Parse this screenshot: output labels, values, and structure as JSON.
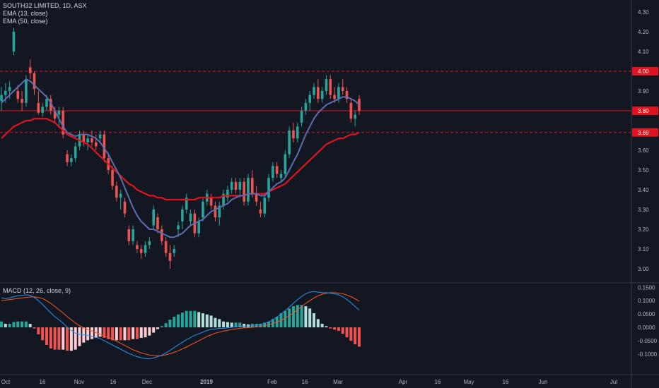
{
  "legend": {
    "symbol": "SOUTH32 LIMITED, 1D, ASX",
    "ema13": "EMA (13, close)",
    "ema50": "EMA (50, close)",
    "macd": "MACD (12, 26, close, 9)"
  },
  "colors": {
    "background": "#131722",
    "up": "#26a69a",
    "down": "#ef5350",
    "ema13": "#5b6eb0",
    "ema50": "#e0141e",
    "macd_line": "#2196f3",
    "signal_line": "#ff5722",
    "hline": "#e0141e"
  },
  "chart_data": [
    {
      "type": "candlestick",
      "ylim": [
        2.95,
        4.35
      ],
      "price_ticks": [
        "4.30",
        "4.20",
        "4.10",
        "4.00",
        "3.90",
        "3.80",
        "3.70",
        "3.60",
        "3.50",
        "3.40",
        "3.30",
        "3.20",
        "3.10",
        "3.00"
      ],
      "time_ticks": [
        "Oct",
        "16",
        "Nov",
        "16",
        "Dec",
        "2019",
        "Feb",
        "16",
        "Mar",
        "Apr",
        "16",
        "May",
        "16",
        "Jun",
        "Jul"
      ],
      "time_ticks_bold": [
        "2019"
      ],
      "horizontal_lines": [
        {
          "value": 4.0,
          "label": "4.00",
          "style": "dashed"
        },
        {
          "value": 3.8,
          "label": "3.80",
          "style": "solid"
        },
        {
          "value": 3.69,
          "label": "3.69",
          "style": "dashed"
        }
      ],
      "ohlc": [
        [
          3.85,
          3.92,
          3.8,
          3.88
        ],
        [
          3.88,
          3.94,
          3.84,
          3.9
        ],
        [
          3.9,
          3.95,
          3.86,
          3.92
        ],
        [
          4.1,
          4.22,
          4.08,
          4.2
        ],
        [
          3.9,
          3.93,
          3.84,
          3.86
        ],
        [
          3.86,
          3.9,
          3.8,
          3.84
        ],
        [
          3.84,
          3.98,
          3.82,
          3.96
        ],
        [
          4.02,
          4.06,
          3.96,
          3.99
        ],
        [
          3.99,
          4.0,
          3.88,
          3.91
        ],
        [
          3.84,
          3.9,
          3.78,
          3.79
        ],
        [
          3.79,
          3.84,
          3.77,
          3.82
        ],
        [
          3.82,
          3.88,
          3.8,
          3.86
        ],
        [
          3.86,
          3.88,
          3.78,
          3.8
        ],
        [
          3.8,
          3.82,
          3.74,
          3.76
        ],
        [
          3.78,
          3.82,
          3.72,
          3.8
        ],
        [
          3.8,
          3.82,
          3.66,
          3.68
        ],
        [
          3.58,
          3.6,
          3.52,
          3.54
        ],
        [
          3.54,
          3.58,
          3.52,
          3.56
        ],
        [
          3.56,
          3.64,
          3.54,
          3.62
        ],
        [
          3.62,
          3.7,
          3.6,
          3.68
        ],
        [
          3.68,
          3.7,
          3.62,
          3.64
        ],
        [
          3.64,
          3.68,
          3.6,
          3.66
        ],
        [
          3.66,
          3.7,
          3.62,
          3.64
        ],
        [
          3.64,
          3.68,
          3.6,
          3.62
        ],
        [
          3.66,
          3.7,
          3.64,
          3.68
        ],
        [
          3.68,
          3.7,
          3.54,
          3.56
        ],
        [
          3.56,
          3.58,
          3.48,
          3.5
        ],
        [
          3.5,
          3.52,
          3.4,
          3.42
        ],
        [
          3.42,
          3.44,
          3.34,
          3.36
        ],
        [
          3.36,
          3.4,
          3.3,
          3.38
        ],
        [
          3.34,
          3.36,
          3.26,
          3.28
        ],
        [
          3.2,
          3.22,
          3.12,
          3.14
        ],
        [
          3.14,
          3.22,
          3.12,
          3.2
        ],
        [
          3.12,
          3.14,
          3.08,
          3.1
        ],
        [
          3.1,
          3.12,
          3.05,
          3.08
        ],
        [
          3.08,
          3.14,
          3.06,
          3.12
        ],
        [
          3.12,
          3.16,
          3.1,
          3.14
        ],
        [
          3.22,
          3.32,
          3.2,
          3.3
        ],
        [
          3.26,
          3.28,
          3.18,
          3.2
        ],
        [
          3.2,
          3.22,
          3.12,
          3.14
        ],
        [
          3.14,
          3.16,
          3.06,
          3.08
        ],
        [
          3.08,
          3.12,
          3.0,
          3.04
        ],
        [
          3.08,
          3.12,
          3.06,
          3.1
        ],
        [
          3.2,
          3.24,
          3.16,
          3.22
        ],
        [
          3.24,
          3.32,
          3.2,
          3.3
        ],
        [
          3.3,
          3.38,
          3.28,
          3.36
        ],
        [
          3.24,
          3.3,
          3.22,
          3.28
        ],
        [
          3.28,
          3.3,
          3.16,
          3.18
        ],
        [
          3.18,
          3.26,
          3.16,
          3.24
        ],
        [
          3.26,
          3.36,
          3.24,
          3.34
        ],
        [
          3.34,
          3.4,
          3.32,
          3.38
        ],
        [
          3.36,
          3.38,
          3.3,
          3.32
        ],
        [
          3.32,
          3.34,
          3.24,
          3.26
        ],
        [
          3.26,
          3.34,
          3.22,
          3.32
        ],
        [
          3.32,
          3.4,
          3.3,
          3.38
        ],
        [
          3.36,
          3.42,
          3.34,
          3.4
        ],
        [
          3.4,
          3.46,
          3.38,
          3.44
        ],
        [
          3.44,
          3.46,
          3.38,
          3.4
        ],
        [
          3.4,
          3.46,
          3.36,
          3.44
        ],
        [
          3.44,
          3.46,
          3.32,
          3.34
        ],
        [
          3.34,
          3.48,
          3.32,
          3.46
        ],
        [
          3.46,
          3.5,
          3.36,
          3.38
        ],
        [
          3.38,
          3.42,
          3.32,
          3.34
        ],
        [
          3.3,
          3.34,
          3.26,
          3.28
        ],
        [
          3.28,
          3.38,
          3.26,
          3.36
        ],
        [
          3.36,
          3.48,
          3.34,
          3.46
        ],
        [
          3.46,
          3.54,
          3.44,
          3.52
        ],
        [
          3.52,
          3.54,
          3.46,
          3.48
        ],
        [
          3.46,
          3.5,
          3.44,
          3.48
        ],
        [
          3.48,
          3.6,
          3.46,
          3.58
        ],
        [
          3.58,
          3.72,
          3.56,
          3.7
        ],
        [
          3.7,
          3.74,
          3.64,
          3.66
        ],
        [
          3.66,
          3.74,
          3.64,
          3.72
        ],
        [
          3.74,
          3.82,
          3.72,
          3.8
        ],
        [
          3.8,
          3.86,
          3.78,
          3.84
        ],
        [
          3.84,
          3.9,
          3.8,
          3.88
        ],
        [
          3.88,
          3.94,
          3.86,
          3.92
        ],
        [
          3.92,
          3.96,
          3.84,
          3.86
        ],
        [
          3.86,
          3.92,
          3.84,
          3.9
        ],
        [
          3.9,
          3.98,
          3.88,
          3.96
        ],
        [
          3.96,
          3.98,
          3.86,
          3.88
        ],
        [
          3.88,
          3.92,
          3.84,
          3.86
        ],
        [
          3.86,
          3.94,
          3.84,
          3.92
        ],
        [
          3.92,
          3.96,
          3.88,
          3.9
        ],
        [
          3.9,
          3.92,
          3.84,
          3.86
        ],
        [
          3.84,
          3.86,
          3.74,
          3.76
        ],
        [
          3.76,
          3.8,
          3.72,
          3.78
        ],
        [
          3.86,
          3.88,
          3.78,
          3.8
        ]
      ],
      "ema13": [
        3.84,
        3.86,
        3.88,
        3.9,
        3.92,
        3.94,
        3.96,
        3.95,
        3.93,
        3.91,
        3.89,
        3.87,
        3.84,
        3.8,
        3.76,
        3.72,
        3.69,
        3.68,
        3.67,
        3.68,
        3.68,
        3.68,
        3.67,
        3.66,
        3.64,
        3.61,
        3.58,
        3.54,
        3.5,
        3.46,
        3.41,
        3.36,
        3.31,
        3.27,
        3.24,
        3.22,
        3.2,
        3.2,
        3.19,
        3.18,
        3.17,
        3.16,
        3.16,
        3.17,
        3.18,
        3.2,
        3.22,
        3.23,
        3.24,
        3.25,
        3.27,
        3.29,
        3.3,
        3.31,
        3.32,
        3.33,
        3.35,
        3.36,
        3.37,
        3.37,
        3.38,
        3.38,
        3.38,
        3.37,
        3.37,
        3.39,
        3.41,
        3.43,
        3.44,
        3.46,
        3.5,
        3.54,
        3.58,
        3.63,
        3.68,
        3.72,
        3.76,
        3.79,
        3.81,
        3.83,
        3.84,
        3.85,
        3.86,
        3.87,
        3.87,
        3.86,
        3.85,
        3.83
      ],
      "ema50": [
        3.66,
        3.68,
        3.7,
        3.72,
        3.73,
        3.74,
        3.75,
        3.75,
        3.76,
        3.76,
        3.76,
        3.76,
        3.75,
        3.74,
        3.72,
        3.7,
        3.68,
        3.67,
        3.66,
        3.65,
        3.64,
        3.63,
        3.61,
        3.59,
        3.57,
        3.55,
        3.53,
        3.51,
        3.49,
        3.47,
        3.45,
        3.43,
        3.42,
        3.4,
        3.39,
        3.38,
        3.37,
        3.37,
        3.36,
        3.36,
        3.35,
        3.35,
        3.35,
        3.35,
        3.35,
        3.35,
        3.35,
        3.35,
        3.36,
        3.36,
        3.36,
        3.36,
        3.36,
        3.36,
        3.37,
        3.37,
        3.37,
        3.37,
        3.37,
        3.37,
        3.38,
        3.38,
        3.38,
        3.38,
        3.38,
        3.39,
        3.4,
        3.41,
        3.42,
        3.43,
        3.45,
        3.47,
        3.49,
        3.51,
        3.53,
        3.55,
        3.57,
        3.59,
        3.61,
        3.63,
        3.64,
        3.65,
        3.66,
        3.66,
        3.67,
        3.68,
        3.68,
        3.69
      ]
    },
    {
      "type": "macd",
      "ylim": [
        -0.12,
        0.16
      ],
      "ticks": [
        "0.1500",
        "0.1000",
        "0.0500",
        "0.0000",
        "-0.0500",
        "-0.1000"
      ],
      "macd": [
        0.11,
        0.108,
        0.11,
        0.115,
        0.118,
        0.12,
        0.122,
        0.12,
        0.112,
        0.1,
        0.086,
        0.07,
        0.054,
        0.04,
        0.028,
        0.016,
        0.0,
        -0.012,
        -0.022,
        -0.026,
        -0.028,
        -0.03,
        -0.034,
        -0.038,
        -0.042,
        -0.05,
        -0.058,
        -0.066,
        -0.074,
        -0.082,
        -0.09,
        -0.098,
        -0.104,
        -0.11,
        -0.114,
        -0.117,
        -0.118,
        -0.115,
        -0.11,
        -0.104,
        -0.096,
        -0.086,
        -0.076,
        -0.066,
        -0.056,
        -0.046,
        -0.038,
        -0.03,
        -0.024,
        -0.018,
        -0.012,
        -0.008,
        -0.006,
        -0.004,
        -0.004,
        -0.002,
        0.0,
        0.002,
        0.004,
        0.004,
        0.004,
        0.006,
        0.008,
        0.01,
        0.014,
        0.02,
        0.028,
        0.038,
        0.05,
        0.062,
        0.076,
        0.09,
        0.104,
        0.116,
        0.126,
        0.132,
        0.134,
        0.132,
        0.13,
        0.13,
        0.128,
        0.126,
        0.122,
        0.115,
        0.104,
        0.092,
        0.078,
        0.065
      ],
      "signal": [
        0.1,
        0.102,
        0.104,
        0.106,
        0.108,
        0.11,
        0.112,
        0.114,
        0.114,
        0.112,
        0.108,
        0.1,
        0.09,
        0.078,
        0.066,
        0.054,
        0.04,
        0.028,
        0.016,
        0.006,
        -0.002,
        -0.008,
        -0.014,
        -0.02,
        -0.026,
        -0.032,
        -0.038,
        -0.044,
        -0.052,
        -0.06,
        -0.068,
        -0.076,
        -0.084,
        -0.09,
        -0.096,
        -0.1,
        -0.104,
        -0.106,
        -0.107,
        -0.106,
        -0.103,
        -0.099,
        -0.094,
        -0.088,
        -0.081,
        -0.074,
        -0.066,
        -0.058,
        -0.05,
        -0.042,
        -0.034,
        -0.028,
        -0.022,
        -0.018,
        -0.014,
        -0.011,
        -0.008,
        -0.006,
        -0.004,
        -0.002,
        -0.001,
        0.0,
        0.002,
        0.004,
        0.006,
        0.01,
        0.014,
        0.02,
        0.026,
        0.034,
        0.044,
        0.054,
        0.066,
        0.078,
        0.09,
        0.1,
        0.11,
        0.118,
        0.124,
        0.128,
        0.13,
        0.13,
        0.128,
        0.126,
        0.121,
        0.115,
        0.107,
        0.098
      ]
    }
  ]
}
